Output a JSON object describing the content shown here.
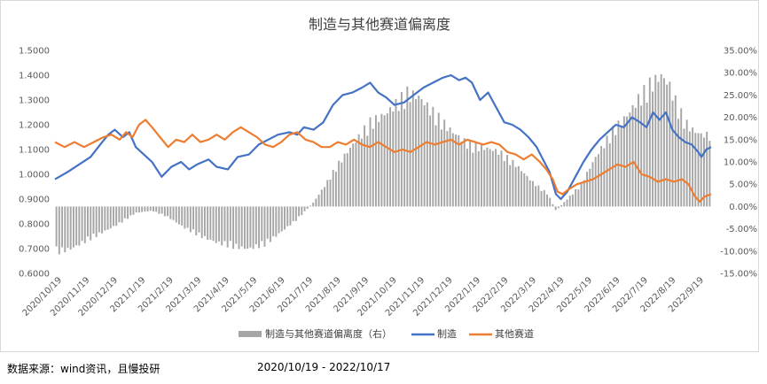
{
  "chart_data": {
    "type": "line+bar",
    "title": "制造与其他赛道偏离度",
    "y_left": {
      "ticks": [
        "0.6000",
        "0.7000",
        "0.8000",
        "0.9000",
        "1.0000",
        "1.1000",
        "1.2000",
        "1.3000",
        "1.4000",
        "1.5000"
      ],
      "ylim": [
        0.6,
        1.5
      ]
    },
    "y_right": {
      "ticks": [
        "-15.00%",
        "-10.00%",
        "-5.00%",
        "0.00%",
        "5.00%",
        "10.00%",
        "15.00%",
        "20.00%",
        "25.00%",
        "30.00%",
        "35.00%"
      ],
      "ylim": [
        -15,
        35
      ]
    },
    "x_ticks": [
      "2020/10/19",
      "2020/11/19",
      "2020/12/19",
      "2021/1/19",
      "2021/2/19",
      "2021/3/19",
      "2021/4/19",
      "2021/5/19",
      "2021/6/19",
      "2021/7/19",
      "2021/8/19",
      "2021/9/19",
      "2021/10/19",
      "2021/11/19",
      "2021/12/19",
      "2022/1/19",
      "2022/2/19",
      "2022/3/19",
      "2022/4/19",
      "2022/5/19",
      "2022/6/19",
      "2022/7/19",
      "2022/8/19",
      "2022/9/19"
    ],
    "series": [
      {
        "name": "制造与其他赛道偏离度（右）",
        "axis": "right",
        "kind": "bar",
        "color": "#a6a6a6",
        "points": [
          [
            0,
            -11
          ],
          [
            1,
            -10
          ],
          [
            2,
            -8
          ],
          [
            3,
            -6
          ],
          [
            4,
            -4
          ],
          [
            5,
            -1.5
          ],
          [
            6,
            -1
          ],
          [
            7,
            -2.5
          ],
          [
            8,
            -5
          ],
          [
            9,
            -7
          ],
          [
            10,
            -8.5
          ],
          [
            11,
            -9.5
          ],
          [
            12,
            -10
          ],
          [
            13,
            -9
          ],
          [
            14,
            -6
          ],
          [
            15,
            -3
          ],
          [
            15.5,
            -1
          ],
          [
            16,
            1
          ],
          [
            16.7,
            5
          ],
          [
            17.5,
            10
          ],
          [
            18.5,
            15
          ],
          [
            19.5,
            20
          ],
          [
            20.5,
            22
          ],
          [
            21,
            24
          ],
          [
            21.8,
            27
          ],
          [
            22.5,
            26
          ],
          [
            23.5,
            22
          ],
          [
            24.5,
            18
          ],
          [
            25.5,
            15
          ],
          [
            26.5,
            14
          ],
          [
            27.5,
            13
          ],
          [
            28.5,
            10
          ],
          [
            29.5,
            6
          ],
          [
            30.5,
            3
          ],
          [
            31,
            -1
          ],
          [
            31.5,
            1
          ],
          [
            32.5,
            5
          ],
          [
            33.5,
            12
          ],
          [
            34.5,
            18
          ],
          [
            35.5,
            22
          ],
          [
            36,
            25
          ],
          [
            36.8,
            29
          ],
          [
            37.5,
            31
          ],
          [
            38,
            29
          ],
          [
            38.5,
            24
          ],
          [
            39,
            20
          ],
          [
            39.5,
            18
          ],
          [
            40,
            17
          ]
        ]
      },
      {
        "name": "制造",
        "axis": "left",
        "kind": "line",
        "color": "#4472c4",
        "points": [
          [
            0,
            0.98
          ],
          [
            0.8,
            1.01
          ],
          [
            1.5,
            1.04
          ],
          [
            2.2,
            1.07
          ],
          [
            2.8,
            1.12
          ],
          [
            3.3,
            1.16
          ],
          [
            3.7,
            1.18
          ],
          [
            4.2,
            1.15
          ],
          [
            4.6,
            1.17
          ],
          [
            5,
            1.11
          ],
          [
            5.5,
            1.08
          ],
          [
            6,
            1.05
          ],
          [
            6.6,
            0.99
          ],
          [
            7.2,
            1.03
          ],
          [
            7.8,
            1.05
          ],
          [
            8.3,
            1.02
          ],
          [
            8.8,
            1.04
          ],
          [
            9.5,
            1.06
          ],
          [
            10,
            1.03
          ],
          [
            10.7,
            1.02
          ],
          [
            11.3,
            1.07
          ],
          [
            12,
            1.08
          ],
          [
            12.6,
            1.12
          ],
          [
            13.2,
            1.14
          ],
          [
            13.8,
            1.16
          ],
          [
            14.5,
            1.17
          ],
          [
            15,
            1.16
          ],
          [
            15.4,
            1.19
          ],
          [
            16,
            1.18
          ],
          [
            16.6,
            1.21
          ],
          [
            17.2,
            1.28
          ],
          [
            17.8,
            1.32
          ],
          [
            18.4,
            1.33
          ],
          [
            19,
            1.35
          ],
          [
            19.5,
            1.37
          ],
          [
            20,
            1.33
          ],
          [
            20.5,
            1.31
          ],
          [
            21,
            1.28
          ],
          [
            21.6,
            1.29
          ],
          [
            22.2,
            1.32
          ],
          [
            22.8,
            1.35
          ],
          [
            23.4,
            1.37
          ],
          [
            24,
            1.39
          ],
          [
            24.5,
            1.4
          ],
          [
            25,
            1.38
          ],
          [
            25.4,
            1.39
          ],
          [
            25.8,
            1.37
          ],
          [
            26.3,
            1.3
          ],
          [
            26.8,
            1.33
          ],
          [
            27.3,
            1.27
          ],
          [
            27.8,
            1.21
          ],
          [
            28.3,
            1.2
          ],
          [
            28.8,
            1.18
          ],
          [
            29.3,
            1.15
          ],
          [
            29.8,
            1.11
          ],
          [
            30.2,
            1.06
          ],
          [
            30.6,
            1.01
          ],
          [
            31,
            0.92
          ],
          [
            31.3,
            0.9
          ],
          [
            31.7,
            0.93
          ],
          [
            32.2,
            0.99
          ],
          [
            32.7,
            1.05
          ],
          [
            33.2,
            1.1
          ],
          [
            33.7,
            1.14
          ],
          [
            34.2,
            1.17
          ],
          [
            34.7,
            1.2
          ],
          [
            35.2,
            1.19
          ],
          [
            35.7,
            1.23
          ],
          [
            36.2,
            1.21
          ],
          [
            36.6,
            1.19
          ],
          [
            37,
            1.25
          ],
          [
            37.4,
            1.22
          ],
          [
            37.8,
            1.25
          ],
          [
            38.2,
            1.18
          ],
          [
            38.6,
            1.15
          ],
          [
            39,
            1.13
          ],
          [
            39.4,
            1.12
          ],
          [
            39.8,
            1.09
          ],
          [
            40,
            1.07
          ],
          [
            40.3,
            1.1
          ],
          [
            40.6,
            1.11
          ]
        ]
      },
      {
        "name": "其他赛道",
        "axis": "left",
        "kind": "line",
        "color": "#ed7d31",
        "points": [
          [
            0,
            1.13
          ],
          [
            0.6,
            1.11
          ],
          [
            1.2,
            1.13
          ],
          [
            1.8,
            1.11
          ],
          [
            2.4,
            1.13
          ],
          [
            3,
            1.15
          ],
          [
            3.5,
            1.16
          ],
          [
            4,
            1.14
          ],
          [
            4.4,
            1.17
          ],
          [
            4.8,
            1.15
          ],
          [
            5.2,
            1.2
          ],
          [
            5.6,
            1.22
          ],
          [
            6,
            1.19
          ],
          [
            6.5,
            1.15
          ],
          [
            7,
            1.11
          ],
          [
            7.5,
            1.14
          ],
          [
            8,
            1.13
          ],
          [
            8.5,
            1.16
          ],
          [
            9,
            1.13
          ],
          [
            9.5,
            1.14
          ],
          [
            10,
            1.16
          ],
          [
            10.5,
            1.14
          ],
          [
            11,
            1.17
          ],
          [
            11.5,
            1.19
          ],
          [
            12,
            1.17
          ],
          [
            12.5,
            1.15
          ],
          [
            13,
            1.12
          ],
          [
            13.5,
            1.11
          ],
          [
            14,
            1.13
          ],
          [
            14.5,
            1.16
          ],
          [
            15,
            1.17
          ],
          [
            15.5,
            1.14
          ],
          [
            16,
            1.13
          ],
          [
            16.5,
            1.11
          ],
          [
            17,
            1.11
          ],
          [
            17.5,
            1.13
          ],
          [
            18,
            1.12
          ],
          [
            18.5,
            1.14
          ],
          [
            19,
            1.12
          ],
          [
            19.5,
            1.11
          ],
          [
            20,
            1.13
          ],
          [
            20.5,
            1.11
          ],
          [
            21,
            1.09
          ],
          [
            21.5,
            1.1
          ],
          [
            22,
            1.09
          ],
          [
            22.5,
            1.11
          ],
          [
            23,
            1.13
          ],
          [
            23.5,
            1.12
          ],
          [
            24,
            1.13
          ],
          [
            24.5,
            1.14
          ],
          [
            25,
            1.12
          ],
          [
            25.5,
            1.14
          ],
          [
            26,
            1.13
          ],
          [
            26.5,
            1.12
          ],
          [
            27,
            1.13
          ],
          [
            27.5,
            1.12
          ],
          [
            28,
            1.09
          ],
          [
            28.5,
            1.08
          ],
          [
            29,
            1.06
          ],
          [
            29.5,
            1.08
          ],
          [
            30,
            1.05
          ],
          [
            30.4,
            1.02
          ],
          [
            30.8,
            0.98
          ],
          [
            31.1,
            0.93
          ],
          [
            31.4,
            0.92
          ],
          [
            31.8,
            0.94
          ],
          [
            32.3,
            0.96
          ],
          [
            32.8,
            0.97
          ],
          [
            33.3,
            0.98
          ],
          [
            33.8,
            1.0
          ],
          [
            34.3,
            1.02
          ],
          [
            34.8,
            1.04
          ],
          [
            35.3,
            1.03
          ],
          [
            35.8,
            1.05
          ],
          [
            36.3,
            1.0
          ],
          [
            36.8,
            0.99
          ],
          [
            37.3,
            0.97
          ],
          [
            37.8,
            0.98
          ],
          [
            38.3,
            0.97
          ],
          [
            38.8,
            0.98
          ],
          [
            39.2,
            0.96
          ],
          [
            39.6,
            0.91
          ],
          [
            39.9,
            0.89
          ],
          [
            40.2,
            0.91
          ],
          [
            40.6,
            0.92
          ]
        ]
      }
    ],
    "legend_position": "bottom"
  },
  "footer": {
    "source": "数据来源：wind资讯，且慢投研",
    "range": "2020/10/19   -   2022/10/17"
  }
}
